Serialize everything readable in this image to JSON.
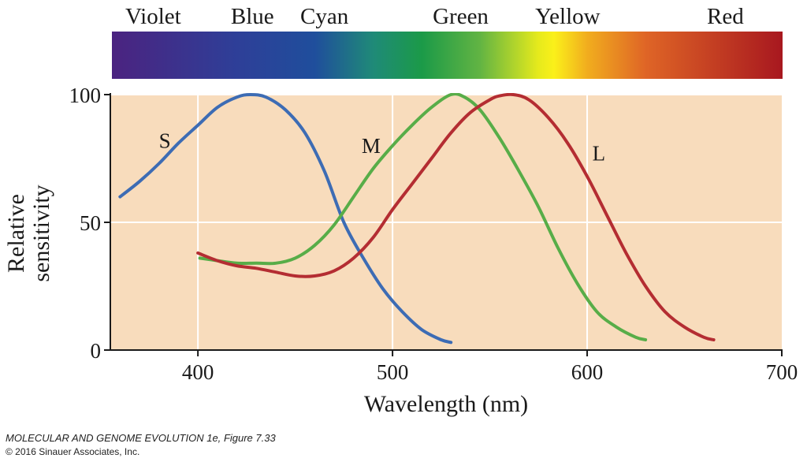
{
  "chart_data": {
    "type": "line",
    "xlabel": "Wavelength (nm)",
    "ylabel": [
      "Relative",
      "sensitivity"
    ],
    "xlim": [
      355,
      700
    ],
    "ylim": [
      0,
      100
    ],
    "xticks": [
      400,
      500,
      600,
      700
    ],
    "yticks": [
      0,
      50,
      100
    ],
    "grid": true,
    "plot_background": "#f8dcbc",
    "spectrum_bar": {
      "labels": [
        {
          "name": "Violet",
          "wavelength": 377
        },
        {
          "name": "Blue",
          "wavelength": 428
        },
        {
          "name": "Cyan",
          "wavelength": 465
        },
        {
          "name": "Green",
          "wavelength": 535
        },
        {
          "name": "Yellow",
          "wavelength": 590
        },
        {
          "name": "Red",
          "wavelength": 671
        }
      ],
      "gradient": [
        {
          "wavelength": 355,
          "color": "#4b2380"
        },
        {
          "wavelength": 420,
          "color": "#2e3f98"
        },
        {
          "wavelength": 460,
          "color": "#1f4e9c"
        },
        {
          "wavelength": 490,
          "color": "#1f8a78"
        },
        {
          "wavelength": 515,
          "color": "#1b9a48"
        },
        {
          "wavelength": 545,
          "color": "#62b443"
        },
        {
          "wavelength": 575,
          "color": "#e6ea1c"
        },
        {
          "wavelength": 583,
          "color": "#fbf01a"
        },
        {
          "wavelength": 600,
          "color": "#f1ad1e"
        },
        {
          "wavelength": 630,
          "color": "#df6526"
        },
        {
          "wavelength": 700,
          "color": "#a8181f"
        }
      ]
    },
    "series": [
      {
        "name": "S",
        "color": "#3d6cb4",
        "label_at": [
          383,
          82
        ],
        "points": [
          [
            360,
            60
          ],
          [
            370,
            66
          ],
          [
            380,
            73
          ],
          [
            390,
            81
          ],
          [
            400,
            88
          ],
          [
            410,
            95
          ],
          [
            420,
            99
          ],
          [
            427,
            100
          ],
          [
            435,
            99
          ],
          [
            445,
            94
          ],
          [
            455,
            85
          ],
          [
            465,
            70
          ],
          [
            475,
            50
          ],
          [
            485,
            36
          ],
          [
            495,
            24
          ],
          [
            505,
            15
          ],
          [
            515,
            8
          ],
          [
            525,
            4
          ],
          [
            530,
            3
          ]
        ]
      },
      {
        "name": "M",
        "color": "#58ad48",
        "label_at": [
          489,
          80
        ],
        "points": [
          [
            401,
            36
          ],
          [
            410,
            35
          ],
          [
            420,
            34
          ],
          [
            430,
            34
          ],
          [
            440,
            34
          ],
          [
            450,
            36
          ],
          [
            460,
            41
          ],
          [
            470,
            49
          ],
          [
            480,
            60
          ],
          [
            490,
            71
          ],
          [
            500,
            80
          ],
          [
            510,
            88
          ],
          [
            520,
            95
          ],
          [
            530,
            100
          ],
          [
            537,
            99
          ],
          [
            545,
            94
          ],
          [
            555,
            83
          ],
          [
            565,
            70
          ],
          [
            575,
            56
          ],
          [
            585,
            40
          ],
          [
            595,
            26
          ],
          [
            605,
            15
          ],
          [
            615,
            9
          ],
          [
            625,
            5
          ],
          [
            630,
            4
          ]
        ]
      },
      {
        "name": "L",
        "color": "#b42d32",
        "label_at": [
          606,
          77
        ],
        "points": [
          [
            400,
            38
          ],
          [
            410,
            35
          ],
          [
            420,
            33
          ],
          [
            430,
            32
          ],
          [
            440,
            30.5
          ],
          [
            450,
            29
          ],
          [
            460,
            29
          ],
          [
            470,
            31
          ],
          [
            480,
            36
          ],
          [
            490,
            44
          ],
          [
            500,
            55
          ],
          [
            510,
            65
          ],
          [
            520,
            75
          ],
          [
            530,
            85
          ],
          [
            540,
            93
          ],
          [
            550,
            98
          ],
          [
            555,
            99.5
          ],
          [
            562,
            100
          ],
          [
            570,
            98
          ],
          [
            580,
            91
          ],
          [
            590,
            81
          ],
          [
            600,
            68
          ],
          [
            610,
            53
          ],
          [
            620,
            38
          ],
          [
            630,
            25
          ],
          [
            640,
            15
          ],
          [
            650,
            9
          ],
          [
            660,
            5
          ],
          [
            665,
            4
          ]
        ]
      }
    ]
  },
  "caption": {
    "title": "MOLECULAR AND GENOME EVOLUTION 1e,",
    "figure": "Figure 7.33",
    "copyright": "© 2016 Sinauer Associates, Inc."
  }
}
